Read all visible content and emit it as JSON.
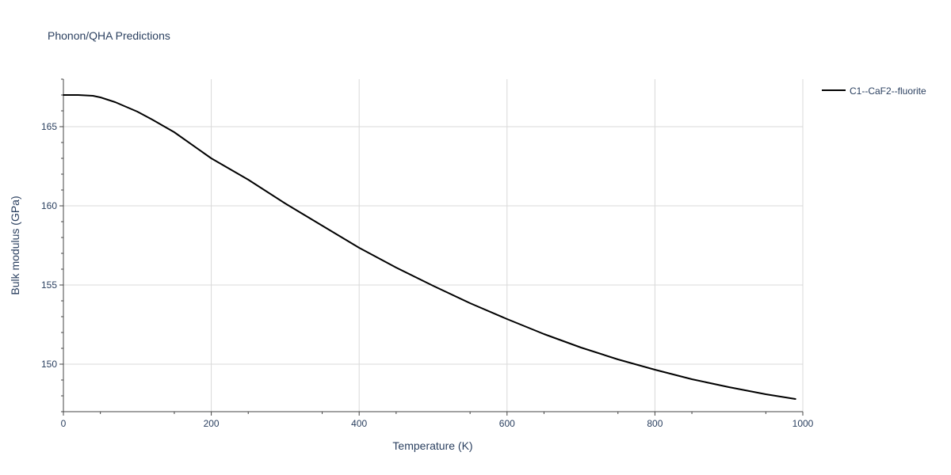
{
  "chart_data": {
    "type": "line",
    "title": "Phonon/QHA Predictions",
    "xlabel": "Temperature (K)",
    "ylabel": "Bulk modulus (GPa)",
    "xlim": [
      0,
      1000
    ],
    "ylim": [
      147,
      168
    ],
    "xticks": [
      0,
      200,
      400,
      600,
      800,
      1000
    ],
    "yticks": [
      150,
      155,
      160,
      165
    ],
    "xtick_labels": [
      "0",
      "200",
      "400",
      "600",
      "800",
      "1000"
    ],
    "ytick_labels": [
      "150",
      "155",
      "160",
      "165"
    ],
    "grid": true,
    "legend_position": "top-right",
    "series": [
      {
        "name": "C1--CaF2--fluorite",
        "color": "#000000",
        "x": [
          0,
          20,
          40,
          50,
          60,
          70,
          80,
          100,
          120,
          150,
          200,
          250,
          300,
          350,
          400,
          450,
          500,
          550,
          600,
          650,
          700,
          750,
          800,
          850,
          900,
          950,
          990
        ],
        "y": [
          167.0,
          167.0,
          166.95,
          166.85,
          166.7,
          166.55,
          166.35,
          165.95,
          165.45,
          164.65,
          163.0,
          161.65,
          160.15,
          158.75,
          157.35,
          156.1,
          154.95,
          153.85,
          152.85,
          151.9,
          151.05,
          150.3,
          149.65,
          149.05,
          148.55,
          148.1,
          147.8
        ]
      }
    ]
  }
}
